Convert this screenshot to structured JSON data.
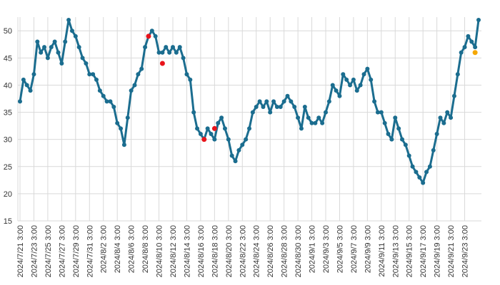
{
  "chart_data": {
    "type": "line",
    "categories": [
      "2024/7/21 3:00",
      null,
      null,
      null,
      "2024/7/23 3:00",
      null,
      null,
      null,
      "2024/7/25 3:00",
      null,
      null,
      null,
      "2024/7/27 3:00",
      null,
      null,
      null,
      "2024/7/29 3:00",
      null,
      null,
      null,
      "2024/7/31 3:00",
      null,
      null,
      null,
      "2024/8/2 3:00",
      null,
      null,
      null,
      "2024/8/4 3:00",
      null,
      null,
      null,
      "2024/8/6 3:00",
      null,
      null,
      null,
      "2024/8/8 3:00",
      null,
      null,
      null,
      "2024/8/10 3:00",
      null,
      null,
      null,
      "2024/8/12 3:00",
      null,
      null,
      null,
      "2024/8/14 3:00",
      null,
      null,
      null,
      "2024/8/16 3:00",
      null,
      null,
      null,
      "2024/8/18 3:00",
      null,
      null,
      null,
      "2024/8/20 3:00",
      null,
      null,
      null,
      "2024/8/22 3:00",
      null,
      null,
      null,
      "2024/8/24 3:00",
      null,
      null,
      null,
      "2024/8/26 3:00",
      null,
      null,
      null,
      "2024/8/28 3:00",
      null,
      null,
      null,
      "2024/8/30 3:00",
      null,
      null,
      null,
      "2024/9/1 3:00",
      null,
      null,
      null,
      "2024/9/3 3:00",
      null,
      null,
      null,
      "2024/9/5 3:00",
      null,
      null,
      null,
      "2024/9/7 3:00",
      null,
      null,
      null,
      "2024/9/9 3:00",
      null,
      null,
      null,
      "2024/9/11 3:00",
      null,
      null,
      null,
      "2024/9/13 3:00",
      null,
      null,
      null,
      "2024/9/15 3:00",
      null,
      null,
      null,
      "2024/9/17 3:00",
      null,
      null,
      null,
      "2024/9/19 3:00",
      null,
      null,
      null,
      "2024/9/21 3:00",
      null,
      null,
      null,
      "2024/9/23 3:00",
      null,
      null,
      null,
      null
    ],
    "series": [
      {
        "color": "#1b6d8f",
        "style": "line-markers",
        "values": [
          37,
          41,
          40,
          39,
          42,
          48,
          46,
          47,
          45,
          47,
          48,
          46,
          44,
          48,
          52,
          50,
          49,
          47,
          45,
          44,
          42,
          42,
          41,
          39,
          38,
          37,
          37,
          36,
          33,
          32,
          29,
          34,
          39,
          40,
          42,
          43,
          47,
          49,
          50,
          49,
          46,
          46,
          47,
          46,
          47,
          46,
          47,
          45,
          42,
          41,
          35,
          32,
          31,
          30,
          32,
          31,
          30,
          33,
          34,
          32,
          30,
          27,
          26,
          28,
          29,
          30,
          32,
          35,
          36,
          37,
          36,
          37,
          35,
          37,
          36,
          36,
          37,
          38,
          37,
          36,
          34,
          32,
          36,
          34,
          33,
          33,
          34,
          33,
          35,
          37,
          40,
          39,
          38,
          42,
          41,
          40,
          41,
          39,
          40,
          42,
          43,
          41,
          37,
          35,
          35,
          33,
          31,
          30,
          34,
          32,
          30,
          29,
          27,
          25,
          24,
          23,
          22,
          24,
          25,
          28,
          31,
          34,
          33,
          35,
          34,
          38,
          42,
          46,
          47,
          49,
          48,
          47,
          52
        ]
      },
      {
        "color": "#e8141b",
        "style": "markers",
        "values": [
          null,
          null,
          null,
          null,
          null,
          null,
          null,
          null,
          null,
          null,
          null,
          null,
          null,
          null,
          null,
          null,
          null,
          null,
          null,
          null,
          null,
          null,
          null,
          null,
          null,
          null,
          null,
          null,
          null,
          null,
          null,
          null,
          null,
          null,
          null,
          null,
          null,
          49,
          null,
          null,
          null,
          44,
          null,
          null,
          null,
          null,
          null,
          null,
          null,
          null,
          null,
          null,
          null,
          30,
          null,
          null,
          32,
          null,
          null,
          null,
          null,
          null,
          null,
          null,
          null,
          null,
          null,
          null,
          null,
          null,
          null,
          null,
          null,
          null,
          null,
          null,
          null,
          null,
          null,
          null,
          null,
          null,
          null,
          null,
          null,
          null,
          null,
          null,
          null,
          null,
          null,
          null,
          null,
          null,
          null,
          null,
          null,
          null,
          null,
          null,
          null,
          null,
          null,
          null,
          null,
          null,
          null,
          null,
          null,
          null,
          null,
          null,
          null,
          null,
          null,
          null,
          null,
          null,
          null,
          null,
          null,
          null,
          null,
          null,
          null,
          null,
          null,
          null,
          null,
          null,
          null,
          null,
          null
        ]
      },
      {
        "color": "#f5a700",
        "style": "markers",
        "values": [
          null,
          null,
          null,
          null,
          null,
          null,
          null,
          null,
          null,
          null,
          null,
          null,
          null,
          null,
          null,
          null,
          null,
          null,
          null,
          null,
          null,
          null,
          null,
          null,
          null,
          null,
          null,
          null,
          null,
          null,
          null,
          null,
          null,
          null,
          null,
          null,
          null,
          null,
          null,
          null,
          null,
          null,
          null,
          null,
          null,
          null,
          null,
          null,
          null,
          null,
          null,
          null,
          null,
          null,
          null,
          null,
          null,
          null,
          null,
          null,
          null,
          null,
          null,
          null,
          null,
          null,
          null,
          null,
          null,
          null,
          null,
          null,
          null,
          null,
          null,
          null,
          null,
          null,
          null,
          null,
          null,
          null,
          null,
          null,
          null,
          null,
          null,
          null,
          null,
          null,
          null,
          null,
          null,
          null,
          null,
          null,
          null,
          null,
          null,
          null,
          null,
          null,
          null,
          null,
          null,
          null,
          null,
          null,
          null,
          null,
          null,
          null,
          null,
          null,
          null,
          null,
          null,
          null,
          null,
          null,
          null,
          null,
          null,
          null,
          null,
          null,
          null,
          null,
          null,
          null,
          null,
          46,
          null
        ]
      }
    ],
    "ylim": [
      15,
      52
    ],
    "yticks": [
      15,
      20,
      25,
      30,
      35,
      40,
      45,
      50
    ],
    "grid": true
  }
}
